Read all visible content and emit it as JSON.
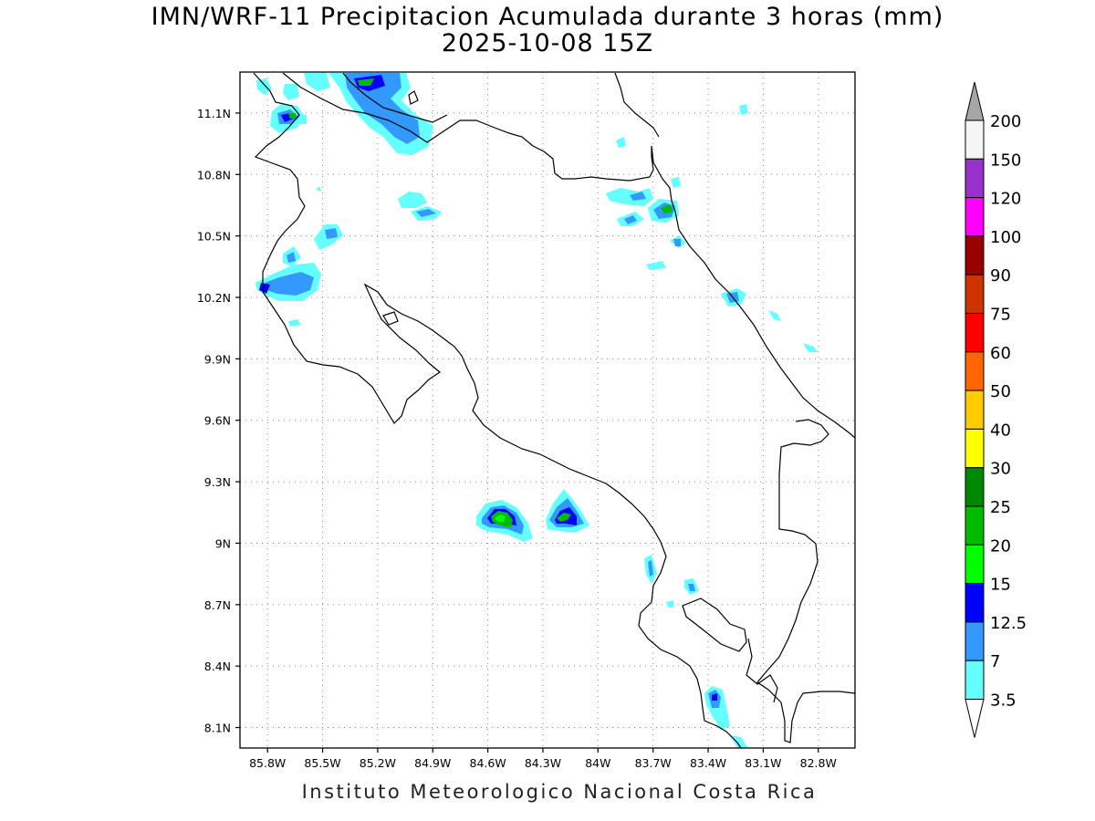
{
  "title": "IMN/WRF-11 Precipitacion Acumulada durante 3 horas (mm)",
  "subtitle": "2025-10-08 15Z",
  "footer": "Instituto Meteorologico Nacional Costa Rica",
  "map": {
    "lon_range": [
      -85.95,
      -82.6
    ],
    "lat_range": [
      8.0,
      11.3
    ],
    "lat_labels": [
      "11.1N",
      "10.8N",
      "10.5N",
      "10.2N",
      "9.9N",
      "9.6N",
      "9.3N",
      "9N",
      "8.7N",
      "8.4N",
      "8.1N"
    ],
    "lon_labels": [
      "85.8W",
      "85.5W",
      "85.2W",
      "84.9W",
      "84.6W",
      "84.3W",
      "84W",
      "83.7W",
      "83.4W",
      "83.1W",
      "82.8W"
    ],
    "grid": "dotted"
  },
  "legend": {
    "units": "mm",
    "levels": [
      {
        "value": "200",
        "color": "#a6a6a6"
      },
      {
        "value": "150",
        "color": "#f5f5f5"
      },
      {
        "value": "120",
        "color": "#9932cc"
      },
      {
        "value": "100",
        "color": "#ff00ff"
      },
      {
        "value": "90",
        "color": "#990000"
      },
      {
        "value": "75",
        "color": "#cc3300"
      },
      {
        "value": "60",
        "color": "#ff0000"
      },
      {
        "value": "50",
        "color": "#ff6600"
      },
      {
        "value": "40",
        "color": "#ffcc00"
      },
      {
        "value": "30",
        "color": "#ffff00"
      },
      {
        "value": "25",
        "color": "#008800"
      },
      {
        "value": "20",
        "color": "#00bb00"
      },
      {
        "value": "15",
        "color": "#00ff00"
      },
      {
        "value": "12.5",
        "color": "#0000ff"
      },
      {
        "value": "7",
        "color": "#3399ff"
      },
      {
        "value": "3.5",
        "color": "#66ffff"
      }
    ]
  }
}
